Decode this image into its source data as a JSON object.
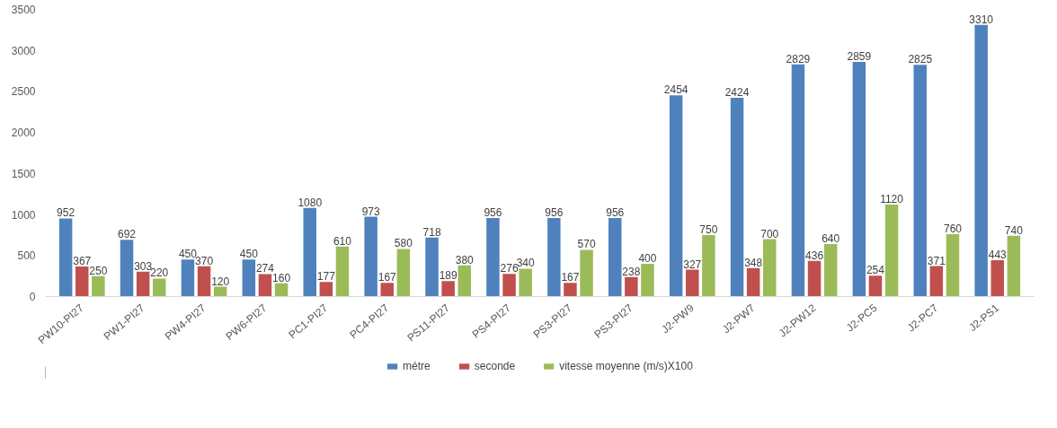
{
  "chart_data": {
    "type": "bar",
    "categories": [
      "PW10-PI27",
      "PW1-PI27",
      "PW4-PI27",
      "PW6-PI27",
      "PC1-PI27",
      "PC4-PI27",
      "PS11-PI27",
      "PS4-PI27",
      "PS3-PI27",
      "PS3-PI27",
      "J2-PW9",
      "J2-PW7",
      "J2-PW12",
      "J2-PC5",
      "J2-PC7",
      "J2-PS1"
    ],
    "series": [
      {
        "name": "métre",
        "color": "#4f81bd",
        "values": [
          952,
          692,
          450,
          450,
          1080,
          973,
          718,
          956,
          956,
          956,
          2454,
          2424,
          2829,
          2859,
          2825,
          3310
        ]
      },
      {
        "name": "seconde",
        "color": "#c0504d",
        "values": [
          367,
          303,
          370,
          274,
          177,
          167,
          189,
          276,
          167,
          238,
          327,
          348,
          436,
          254,
          371,
          443
        ]
      },
      {
        "name": "vitesse moyenne (m/s)X100",
        "color": "#9bbb59",
        "values": [
          250,
          220,
          120,
          160,
          610,
          580,
          380,
          340,
          570,
          400,
          750,
          700,
          640,
          1120,
          760,
          740
        ]
      }
    ],
    "ylim": [
      0,
      3500
    ],
    "yticks": [
      0,
      500,
      1000,
      1500,
      2000,
      2500,
      3000,
      3500
    ],
    "grid": false,
    "legend": "bottom",
    "data_labels": true
  }
}
